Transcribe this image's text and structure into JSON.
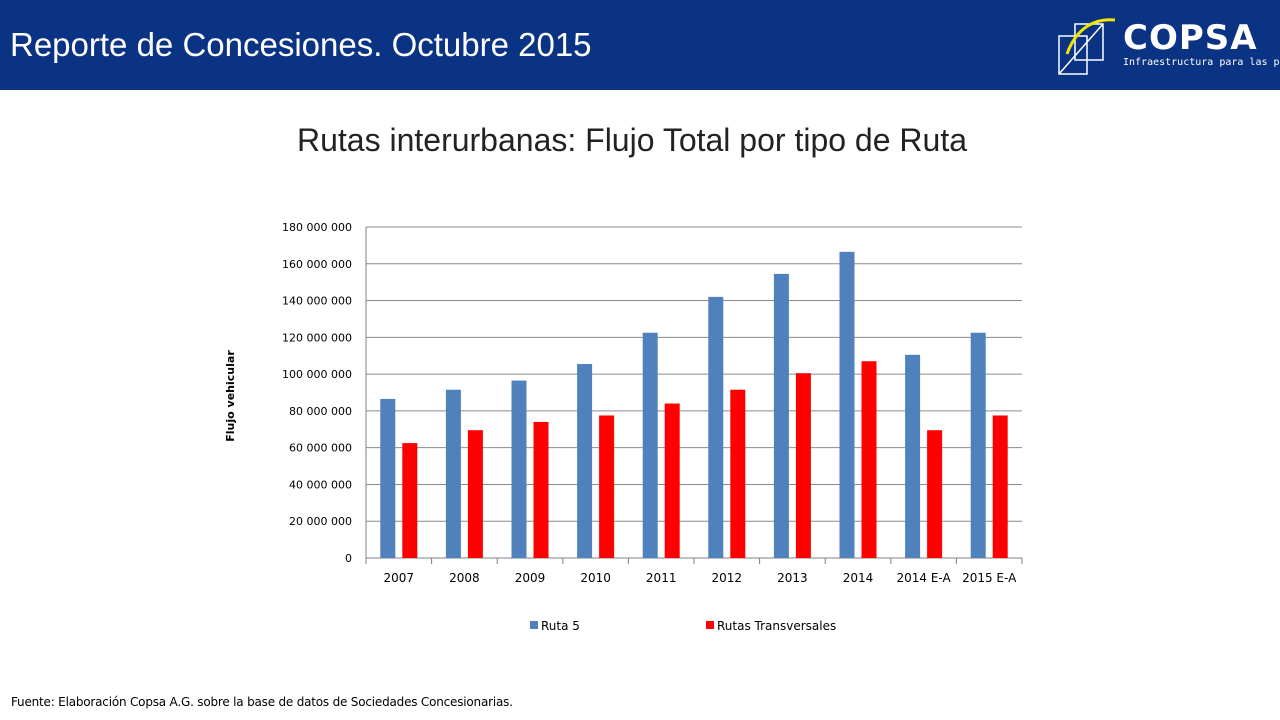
{
  "header": {
    "title": "Reporte de Concesiones. Octubre 2015",
    "logo_name": "COPSA",
    "logo_tagline": "Infraestructura para las personas",
    "background_color": "#0b3383"
  },
  "slide": {
    "title": "Rutas interurbanas: Flujo Total por tipo de Ruta"
  },
  "chart_data": {
    "type": "bar",
    "title": "",
    "xlabel": "",
    "ylabel": "Flujo vehicular",
    "categories": [
      "2007",
      "2008",
      "2009",
      "2010",
      "2011",
      "2012",
      "2013",
      "2014",
      "2014 E-A",
      "2015 E-A"
    ],
    "series": [
      {
        "name": "Ruta 5",
        "color": "#4f81bd",
        "values": [
          86500000,
          91500000,
          96500000,
          105500000,
          122500000,
          142000000,
          154500000,
          166500000,
          110500000,
          122500000
        ]
      },
      {
        "name": "Rutas Transversales",
        "color": "#ff0000",
        "values": [
          62500000,
          69500000,
          74000000,
          77500000,
          84000000,
          91500000,
          100500000,
          107000000,
          69500000,
          77500000
        ]
      }
    ],
    "ylim": [
      0,
      180000000
    ],
    "yticks": [
      0,
      20000000,
      40000000,
      60000000,
      80000000,
      100000000,
      120000000,
      140000000,
      160000000,
      180000000
    ],
    "ytick_labels": [
      "0",
      "20 000 000",
      "40 000 000",
      "60 000 000",
      "80 000 000",
      "100 000 000",
      "120 000 000",
      "140 000 000",
      "160 000 000",
      "180 000 000"
    ],
    "grid": true,
    "legend": "bottom"
  },
  "footnote": "Fuente: Elaboración Copsa A.G. sobre la base de datos de Sociedades Concesionarias."
}
